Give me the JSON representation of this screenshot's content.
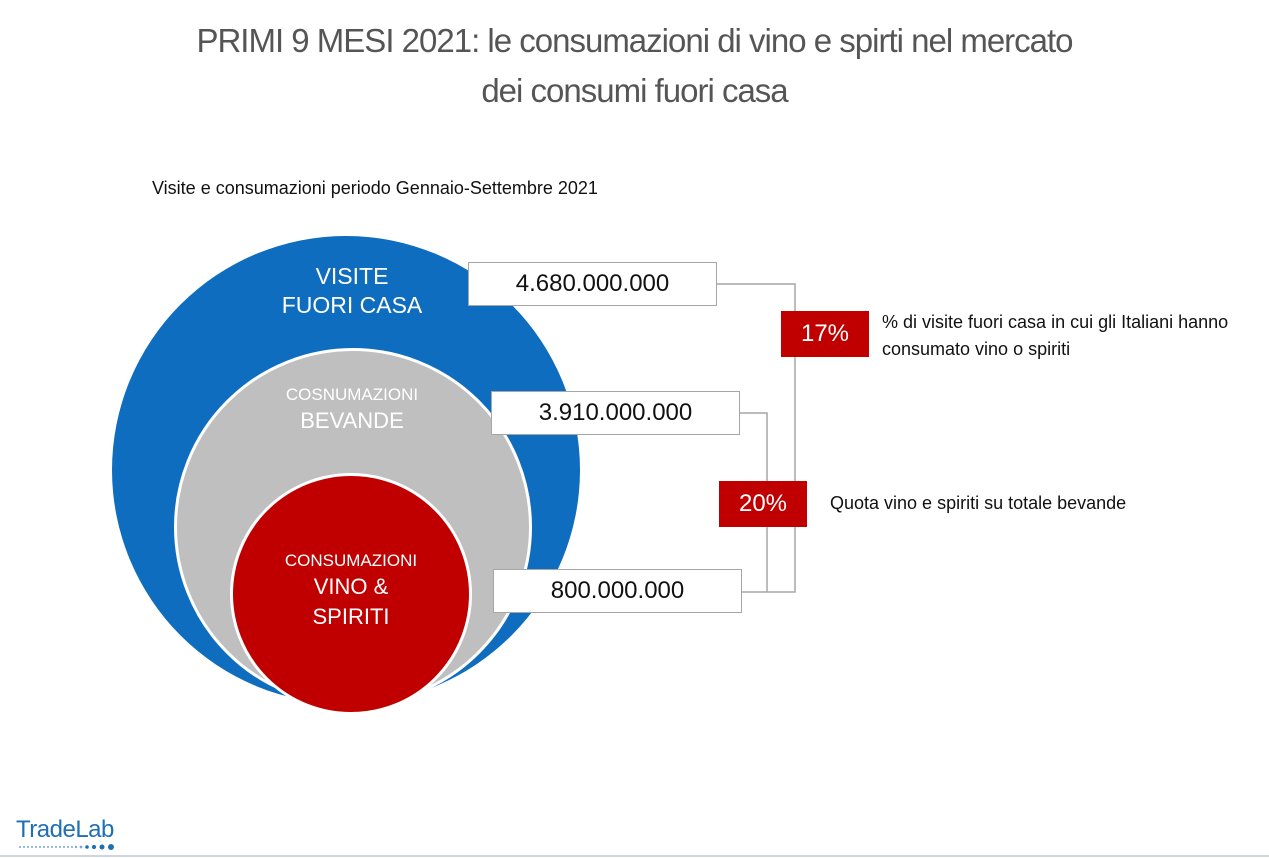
{
  "title": {
    "line1": "PRIMI 9 MESI 2021: le consumazioni di vino e spirti nel mercato",
    "line2": "dei consumi fuori casa"
  },
  "subtitle": "Visite e consumazioni periodo Gennaio-Settembre 2021",
  "circles": {
    "outer": {
      "line1": "VISITE",
      "line2": "FUORI CASA",
      "color": "#0f6dbf"
    },
    "middle": {
      "line1": "COSNUMAZIONI",
      "line2": "BEVANDE",
      "color": "#bfbfbf"
    },
    "inner": {
      "line1": "CONSUMAZIONI",
      "line2": "VINO &",
      "line3": "SPIRITI",
      "color": "#c00000"
    }
  },
  "values": {
    "visits": "4.680.000.000",
    "drinks": "3.910.000.000",
    "wine_spirits": "800.000.000"
  },
  "percentages": [
    {
      "value": "17%",
      "note": "% di visite fuori casa in cui gli Italiani hanno consumato vino o spiriti"
    },
    {
      "value": "20%",
      "note": "Quota vino e spiriti su totale bevande"
    }
  ],
  "logo": {
    "part1": "Trade",
    "part2": "Lab"
  }
}
